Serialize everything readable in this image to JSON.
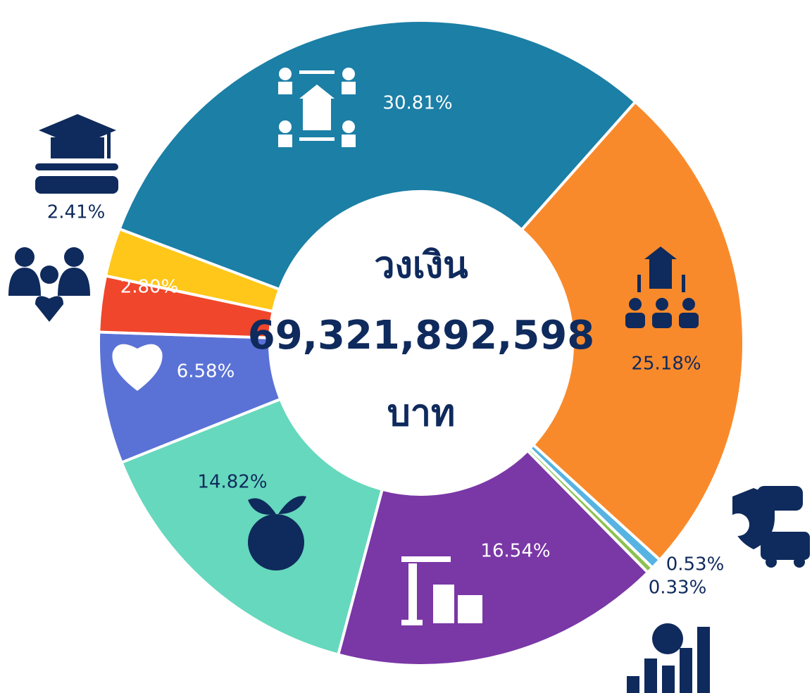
{
  "chart_data": {
    "type": "donut",
    "center_text": [
      "วงเงิน",
      "69,321,892,598",
      "บาท"
    ],
    "categories": [
      null,
      null,
      null,
      null,
      null,
      null,
      null,
      null,
      null
    ],
    "values": [
      30.81,
      25.18,
      0.53,
      0.33,
      16.54,
      14.82,
      6.58,
      2.8,
      2.41
    ],
    "value_labels": [
      "30.81%",
      "25.18%",
      "0.53%",
      "0.33%",
      "16.54%",
      "14.82%",
      "6.58%",
      "2.80%",
      "2.41%"
    ],
    "colors": [
      "#1b7fa6",
      "#f98a2c",
      "#56b3e2",
      "#8cc152",
      "#7a37a6",
      "#66d8bd",
      "#5a72d6",
      "#f0462b",
      "#ffc719"
    ]
  }
}
